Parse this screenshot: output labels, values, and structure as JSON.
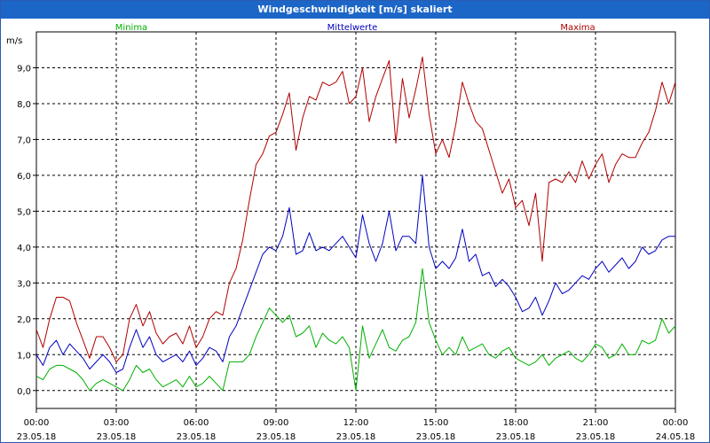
{
  "window": {
    "title": "Windgeschwindigkeit [m/s] skaliert"
  },
  "chart_data": {
    "type": "line",
    "ylabel": "m/s",
    "ylim": [
      -0.5,
      10.0
    ],
    "yticks": [
      "0,0",
      "1,0",
      "2,0",
      "3,0",
      "4,0",
      "5,0",
      "6,0",
      "7,0",
      "8,0",
      "9,0"
    ],
    "xticks": [
      {
        "time": "00:00",
        "date": "23.05.18"
      },
      {
        "time": "03:00",
        "date": "23.05.18"
      },
      {
        "time": "06:00",
        "date": "23.05.18"
      },
      {
        "time": "09:00",
        "date": "23.05.18"
      },
      {
        "time": "12:00",
        "date": "23.05.18"
      },
      {
        "time": "15:00",
        "date": "23.05.18"
      },
      {
        "time": "18:00",
        "date": "23.05.18"
      },
      {
        "time": "21:00",
        "date": "23.05.18"
      },
      {
        "time": "00:00",
        "date": "24.05.18"
      }
    ],
    "grid": true,
    "legend_position": "top",
    "x_hours": [
      0,
      0.25,
      0.5,
      0.75,
      1,
      1.25,
      1.5,
      1.75,
      2,
      2.25,
      2.5,
      2.75,
      3,
      3.25,
      3.5,
      3.75,
      4,
      4.25,
      4.5,
      4.75,
      5,
      5.25,
      5.5,
      5.75,
      6,
      6.25,
      6.5,
      6.75,
      7,
      7.25,
      7.5,
      7.75,
      8,
      8.25,
      8.5,
      8.75,
      9,
      9.25,
      9.5,
      9.75,
      10,
      10.25,
      10.5,
      10.75,
      11,
      11.25,
      11.5,
      11.75,
      12,
      12.25,
      12.5,
      12.75,
      13,
      13.25,
      13.5,
      13.75,
      14,
      14.25,
      14.5,
      14.75,
      15,
      15.25,
      15.5,
      15.75,
      16,
      16.25,
      16.5,
      16.75,
      17,
      17.25,
      17.5,
      17.75,
      18,
      18.25,
      18.5,
      18.75,
      19,
      19.25,
      19.5,
      19.75,
      20,
      20.25,
      20.5,
      20.75,
      21,
      21.25,
      21.5,
      21.75,
      22,
      22.25,
      22.5,
      22.75,
      23,
      23.25,
      23.5,
      23.75,
      24
    ],
    "series": [
      {
        "name": "Minima",
        "color": "#00b000",
        "values": [
          0.4,
          0.3,
          0.6,
          0.7,
          0.7,
          0.6,
          0.5,
          0.3,
          0.0,
          0.2,
          0.3,
          0.2,
          0.1,
          0.0,
          0.3,
          0.7,
          0.5,
          0.6,
          0.3,
          0.1,
          0.2,
          0.3,
          0.1,
          0.4,
          0.1,
          0.2,
          0.4,
          0.2,
          0.0,
          0.8,
          0.8,
          0.8,
          1.0,
          1.5,
          1.9,
          2.3,
          2.1,
          1.9,
          2.1,
          1.5,
          1.6,
          1.8,
          1.2,
          1.6,
          1.4,
          1.3,
          1.5,
          1.2,
          0.0,
          1.8,
          0.9,
          1.3,
          1.7,
          1.2,
          1.1,
          1.4,
          1.5,
          1.9,
          3.4,
          1.9,
          1.4,
          1.0,
          1.2,
          1.0,
          1.5,
          1.1,
          1.2,
          1.3,
          1.0,
          0.9,
          1.1,
          1.2,
          0.9,
          0.8,
          0.7,
          0.8,
          1.0,
          0.7,
          0.9,
          1.0,
          1.1,
          0.9,
          0.8,
          1.0,
          1.3,
          1.2,
          0.9,
          1.0,
          1.3,
          1.0,
          1.0,
          1.4,
          1.3,
          1.4,
          2.0,
          1.6,
          1.8
        ]
      },
      {
        "name": "Mittelwerte",
        "color": "#0000c0",
        "values": [
          1.0,
          0.7,
          1.2,
          1.4,
          1.0,
          1.3,
          1.1,
          0.9,
          0.6,
          0.8,
          1.0,
          0.8,
          0.5,
          0.6,
          1.2,
          1.7,
          1.2,
          1.5,
          1.0,
          0.8,
          0.9,
          1.0,
          0.8,
          1.1,
          0.7,
          0.9,
          1.2,
          1.1,
          0.8,
          1.5,
          1.8,
          2.3,
          2.8,
          3.3,
          3.8,
          4.0,
          3.9,
          4.3,
          5.1,
          3.8,
          3.9,
          4.4,
          3.9,
          4.0,
          3.9,
          4.1,
          4.3,
          4.0,
          3.7,
          4.9,
          4.1,
          3.6,
          4.1,
          5.0,
          3.9,
          4.3,
          4.3,
          4.1,
          6.0,
          4.0,
          3.4,
          3.6,
          3.4,
          3.7,
          4.5,
          3.6,
          3.8,
          3.2,
          3.3,
          2.9,
          3.1,
          2.9,
          2.6,
          2.2,
          2.3,
          2.6,
          2.1,
          2.5,
          3.0,
          2.7,
          2.8,
          3.0,
          3.2,
          3.1,
          3.4,
          3.6,
          3.3,
          3.5,
          3.7,
          3.4,
          3.6,
          4.0,
          3.8,
          3.9,
          4.2,
          4.3,
          4.3
        ]
      },
      {
        "name": "Maxima",
        "color": "#b00000",
        "values": [
          1.7,
          1.2,
          2.0,
          2.6,
          2.6,
          2.5,
          1.9,
          1.4,
          0.9,
          1.5,
          1.5,
          1.2,
          0.8,
          1.0,
          2.0,
          2.4,
          1.8,
          2.2,
          1.6,
          1.3,
          1.5,
          1.6,
          1.3,
          1.8,
          1.2,
          1.5,
          2.0,
          2.2,
          2.1,
          3.0,
          3.4,
          4.2,
          5.3,
          6.3,
          6.6,
          7.1,
          7.2,
          7.7,
          8.3,
          6.7,
          7.6,
          8.2,
          8.1,
          8.6,
          8.5,
          8.6,
          8.9,
          8.0,
          8.2,
          9.0,
          7.5,
          8.2,
          8.7,
          9.2,
          6.9,
          8.7,
          7.6,
          8.4,
          9.3,
          7.7,
          6.6,
          7.0,
          6.5,
          7.4,
          8.6,
          8.0,
          7.5,
          7.3,
          6.7,
          6.1,
          5.5,
          5.9,
          5.1,
          5.3,
          4.6,
          5.5,
          3.6,
          5.8,
          5.9,
          5.8,
          6.1,
          5.8,
          6.4,
          5.9,
          6.3,
          6.6,
          5.8,
          6.3,
          6.6,
          6.5,
          6.5,
          6.9,
          7.2,
          7.8,
          8.6,
          8.0,
          8.6
        ]
      }
    ]
  }
}
